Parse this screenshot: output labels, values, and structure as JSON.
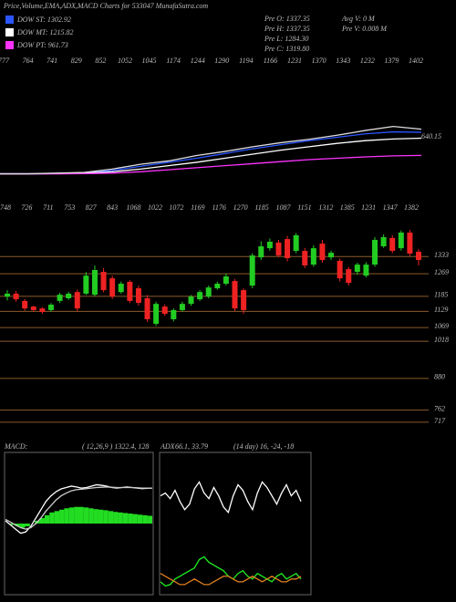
{
  "header": {
    "title": "Price,Volume,EMA,ADX,MACD Charts for 533047 MunafaSutra.com",
    "info": [
      "Pre O: 1337.35",
      "Pre H: 1337.35",
      "Pre L: 1284.30",
      "Pre C: 1319.80"
    ],
    "info2": [
      "Avg V: 0 M",
      "Pre V: 0.008 M"
    ]
  },
  "chart_data": [
    {
      "type": "line",
      "annotation": "640.15",
      "ylim": [
        630,
        2450
      ],
      "top_labels": [
        777,
        764,
        741,
        829,
        852,
        1052,
        1045,
        1174,
        1244,
        1290,
        1194,
        1166,
        1231,
        1370,
        1343,
        1232,
        1379,
        1402
      ],
      "series": [
        {
          "name": "DOW ST: 1302.92",
          "color": "#2a55ff",
          "values": [
            690,
            690,
            695,
            705,
            740,
            800,
            860,
            920,
            990,
            1060,
            1120,
            1180,
            1230,
            1280,
            1310,
            1303
          ]
        },
        {
          "name": "DOW MT: 1215.82",
          "color": "#ffffff",
          "values": [
            690,
            690,
            692,
            700,
            720,
            760,
            810,
            860,
            920,
            980,
            1040,
            1090,
            1140,
            1180,
            1205,
            1216
          ]
        },
        {
          "name": "DOW PT: 961.73",
          "color": "#ff33ff",
          "values": [
            690,
            690,
            690,
            692,
            700,
            720,
            750,
            780,
            810,
            840,
            870,
            900,
            920,
            940,
            955,
            962
          ]
        },
        {
          "name": "Price",
          "color": "#dddddd",
          "values": [
            690,
            690,
            700,
            710,
            760,
            830,
            880,
            960,
            1020,
            1090,
            1150,
            1200,
            1260,
            1330,
            1390,
            1350
          ],
          "legend": false
        }
      ]
    },
    {
      "type": "candlestick",
      "ylim": [
        693,
        1500
      ],
      "up_color": "#22cc22",
      "down_color": "#ee2222",
      "top_labels": [
        748,
        726,
        711,
        753,
        827,
        843,
        1068,
        1022,
        1072,
        1169,
        1176,
        1270,
        1185,
        1087,
        1151,
        1312,
        1385,
        1231,
        1347,
        1382
      ],
      "levels": [
        1333,
        1269,
        1185,
        1129,
        1069,
        1018,
        880,
        762,
        717
      ],
      "open": [
        1184,
        1195,
        1168,
        1147,
        1140,
        1134,
        1168,
        1178,
        1201,
        1195,
        1191,
        1276,
        1252,
        1201,
        1239,
        1215,
        1178,
        1083,
        1147,
        1100,
        1134,
        1157,
        1174,
        1184,
        1215,
        1232,
        1242,
        1208,
        1225,
        1330,
        1364,
        1385,
        1398,
        1354,
        1354,
        1303,
        1381,
        1330,
        1317,
        1286,
        1276,
        1262,
        1303,
        1371,
        1402,
        1364,
        1422,
        1351
      ],
      "high": [
        1208,
        1205,
        1175,
        1150,
        1145,
        1160,
        1198,
        1202,
        1210,
        1275,
        1300,
        1290,
        1262,
        1240,
        1245,
        1225,
        1190,
        1165,
        1155,
        1140,
        1165,
        1190,
        1208,
        1225,
        1240,
        1270,
        1250,
        1215,
        1345,
        1390,
        1400,
        1395,
        1410,
        1420,
        1365,
        1375,
        1395,
        1355,
        1325,
        1295,
        1310,
        1312,
        1405,
        1415,
        1412,
        1430,
        1432,
        1360
      ],
      "low": [
        1170,
        1165,
        1132,
        1128,
        1120,
        1128,
        1160,
        1172,
        1130,
        1190,
        1185,
        1200,
        1175,
        1195,
        1160,
        1150,
        1090,
        1075,
        1112,
        1092,
        1128,
        1150,
        1168,
        1178,
        1210,
        1225,
        1130,
        1120,
        1215,
        1320,
        1355,
        1330,
        1315,
        1345,
        1290,
        1295,
        1310,
        1320,
        1240,
        1225,
        1265,
        1255,
        1295,
        1365,
        1345,
        1355,
        1335,
        1300
      ],
      "close": [
        1195,
        1174,
        1140,
        1134,
        1127,
        1154,
        1191,
        1195,
        1140,
        1262,
        1283,
        1208,
        1184,
        1232,
        1168,
        1161,
        1100,
        1157,
        1120,
        1134,
        1157,
        1184,
        1201,
        1218,
        1232,
        1259,
        1140,
        1134,
        1337,
        1371,
        1388,
        1337,
        1327,
        1412,
        1300,
        1364,
        1320,
        1347,
        1252,
        1235,
        1303,
        1303,
        1395,
        1405,
        1354,
        1422,
        1344,
        1320
      ]
    },
    {
      "type": "macd",
      "title": "MACD:",
      "subtitle": "( 12,26,9 ) 1322.4, 128",
      "ylim": [
        -250,
        250
      ],
      "histogram": {
        "color": "#22dd22",
        "values": [
          0,
          -5,
          -10,
          -15,
          -10,
          0,
          10,
          20,
          30,
          40,
          45,
          50,
          55,
          58,
          60,
          60,
          58,
          55,
          52,
          50,
          48,
          45,
          42,
          40,
          38,
          36,
          34,
          32,
          30,
          28
        ]
      },
      "series": [
        {
          "color": "#ffffff",
          "values": [
            10,
            -5,
            -20,
            -35,
            -30,
            -10,
            20,
            50,
            80,
            100,
            115,
            125,
            130,
            135,
            132,
            128,
            130,
            135,
            140,
            138,
            135,
            130,
            128,
            130,
            132,
            130,
            128,
            126,
            127,
            128
          ]
        },
        {
          "color": "#cccccc",
          "values": [
            15,
            5,
            -5,
            -15,
            -20,
            -15,
            0,
            20,
            45,
            65,
            85,
            100,
            110,
            118,
            122,
            124,
            126,
            128,
            130,
            131,
            132,
            131,
            130,
            130,
            130,
            130,
            129,
            128,
            128,
            128
          ]
        }
      ]
    },
    {
      "type": "adx",
      "title": "ADX",
      "subtitle": "66.1, 33.79",
      "note": "(14 day) 16, -24, -18",
      "ylim": [
        0,
        100
      ],
      "series": [
        {
          "color": "#ffffff",
          "values": [
            70,
            72,
            68,
            74,
            66,
            60,
            64,
            75,
            80,
            72,
            68,
            76,
            70,
            62,
            58,
            70,
            78,
            74,
            66,
            60,
            72,
            80,
            76,
            70,
            64,
            72,
            78,
            70,
            74,
            66
          ]
        },
        {
          "color": "#22ee22",
          "values": [
            8,
            5,
            6,
            10,
            12,
            14,
            16,
            18,
            24,
            26,
            22,
            20,
            18,
            16,
            12,
            10,
            14,
            16,
            12,
            10,
            14,
            12,
            10,
            8,
            12,
            14,
            10,
            12,
            14,
            10
          ]
        },
        {
          "color": "#e08020",
          "values": [
            14,
            12,
            10,
            8,
            6,
            6,
            8,
            10,
            8,
            6,
            6,
            8,
            10,
            12,
            12,
            10,
            8,
            8,
            10,
            12,
            10,
            8,
            10,
            12,
            10,
            8,
            8,
            10,
            10,
            12
          ]
        }
      ]
    }
  ]
}
